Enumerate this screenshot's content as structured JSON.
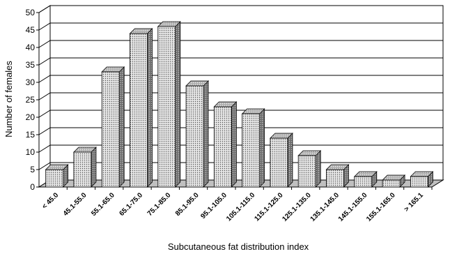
{
  "chart_data": {
    "type": "bar",
    "style": "3d",
    "xlabel": "Subcutaneous fat distribution index",
    "ylabel": "Number of females",
    "ylim": [
      0,
      50
    ],
    "yticks": [
      0,
      5,
      10,
      15,
      20,
      25,
      30,
      35,
      40,
      45,
      50
    ],
    "grid": true,
    "categories": [
      "< 45.0",
      "45.1-55.0",
      "55.1-65.0",
      "65.1-75.0",
      "75.1-85.0",
      "85.1-95.0",
      "95.1-105.0",
      "105.1-115.0",
      "115.1-125.0",
      "125.1-135.0",
      "135.1-145.0",
      "145.1-155.0",
      "155.1-165.0",
      "> 165.1"
    ],
    "values": [
      5,
      10,
      33,
      44,
      46,
      29,
      23,
      21,
      14,
      9,
      5,
      3,
      2,
      3
    ],
    "colors": {
      "bar_front": "#d9d9d9",
      "bar_side": "#7a7a7a",
      "bar_top": "#bdbdbd",
      "floor": "#c0c0c0",
      "grid": "#000000"
    }
  }
}
